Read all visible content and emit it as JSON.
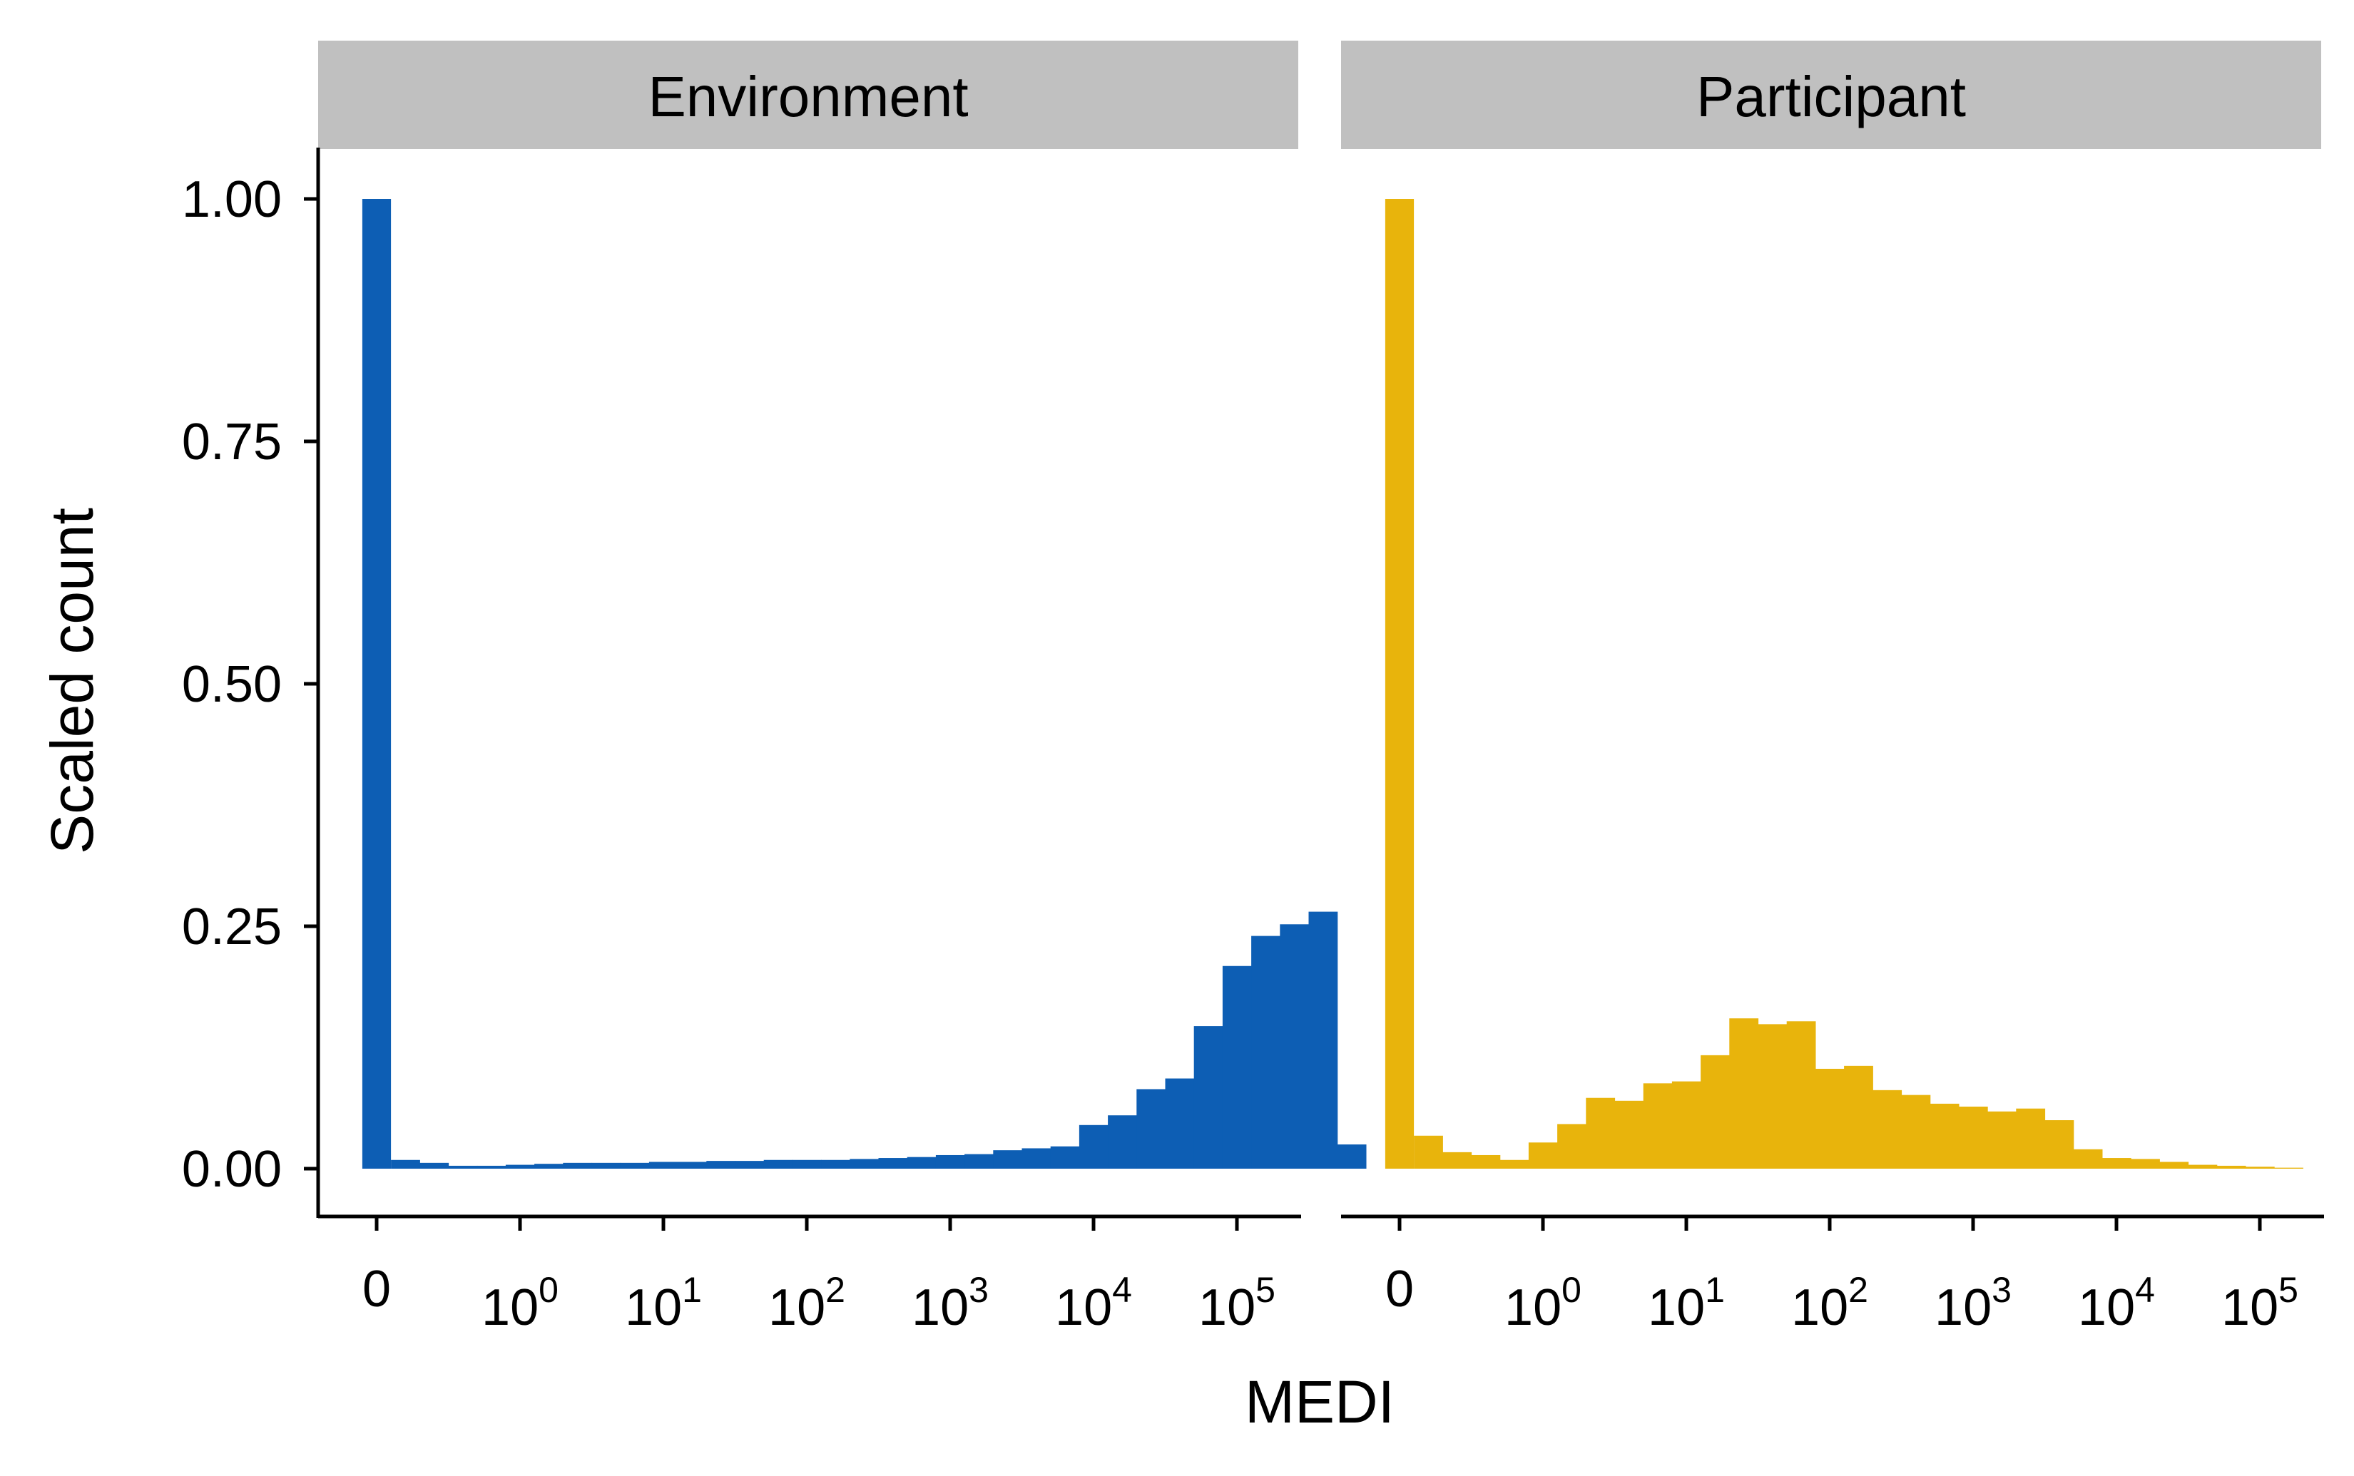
{
  "chart_data": {
    "type": "bar",
    "xlabel": "MEDI",
    "ylabel": "Scaled count",
    "ylim": [
      0,
      1.05
    ],
    "x_scale": "log10 with separate 0 bin",
    "x_ticks": [
      {
        "label": "0",
        "exp": null,
        "pos": -1.0
      },
      {
        "label": "10",
        "exp": "0",
        "pos": 0
      },
      {
        "label": "10",
        "exp": "1",
        "pos": 1
      },
      {
        "label": "10",
        "exp": "2",
        "pos": 2
      },
      {
        "label": "10",
        "exp": "3",
        "pos": 3
      },
      {
        "label": "10",
        "exp": "4",
        "pos": 4
      },
      {
        "label": "10",
        "exp": "5",
        "pos": 5
      }
    ],
    "y_ticks": [
      {
        "label": "0.00",
        "value": 0
      },
      {
        "label": "0.25",
        "value": 0.25
      },
      {
        "label": "0.50",
        "value": 0.5
      },
      {
        "label": "0.75",
        "value": 0.75
      },
      {
        "label": "1.00",
        "value": 1.0
      }
    ],
    "bin_width": 0.2,
    "zero_bin": {
      "center": -1.0,
      "width": 0.2
    },
    "bins_start": -0.9,
    "panels": [
      {
        "name": "Environment",
        "color": "#0D5EB4",
        "zero_value": 1.0,
        "values": [
          0.009,
          0.006,
          0.003,
          0.003,
          0.004,
          0.005,
          0.006,
          0.006,
          0.006,
          0.007,
          0.007,
          0.008,
          0.008,
          0.009,
          0.009,
          0.009,
          0.01,
          0.011,
          0.012,
          0.014,
          0.015,
          0.019,
          0.021,
          0.023,
          0.045,
          0.055,
          0.082,
          0.093,
          0.147,
          0.209,
          0.24,
          0.252,
          0.265,
          0.025
        ]
      },
      {
        "name": "Participant",
        "color": "#E8B40C",
        "zero_value": 1.0,
        "values": [
          0.034,
          0.017,
          0.014,
          0.009,
          0.027,
          0.046,
          0.073,
          0.07,
          0.088,
          0.09,
          0.117,
          0.155,
          0.149,
          0.152,
          0.103,
          0.106,
          0.081,
          0.076,
          0.067,
          0.064,
          0.059,
          0.062,
          0.05,
          0.02,
          0.011,
          0.01,
          0.007,
          0.004,
          0.003,
          0.002,
          0.001
        ]
      }
    ]
  }
}
